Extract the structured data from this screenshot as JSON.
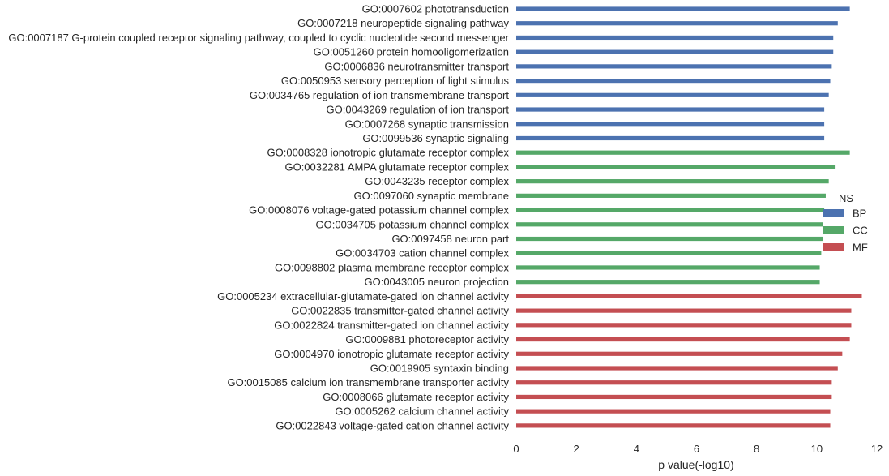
{
  "chart_data": {
    "type": "bar",
    "orientation": "horizontal",
    "xlabel": "p value(-log10)",
    "ylabel": "",
    "xlim": [
      0,
      12
    ],
    "xticks": [
      "0",
      "2",
      "4",
      "6",
      "8",
      "10",
      "12"
    ],
    "grid": false,
    "legend": {
      "title": "NS",
      "placement": "right",
      "entries": [
        {
          "name": "BP",
          "color": "#4c72b0"
        },
        {
          "name": "CC",
          "color": "#55a868"
        },
        {
          "name": "MF",
          "color": "#c44e52"
        }
      ]
    },
    "bars": [
      {
        "label": "GO:0007602 phototransduction",
        "value": 11.1,
        "group": "BP"
      },
      {
        "label": "GO:0007218 neuropeptide signaling pathway",
        "value": 10.7,
        "group": "BP"
      },
      {
        "label": "GO:0007187 G-protein coupled receptor signaling pathway, coupled to cyclic nucleotide second messenger",
        "value": 10.55,
        "group": "BP"
      },
      {
        "label": "GO:0051260 protein homooligomerization",
        "value": 10.55,
        "group": "BP"
      },
      {
        "label": "GO:0006836 neurotransmitter transport",
        "value": 10.5,
        "group": "BP"
      },
      {
        "label": "GO:0050953 sensory perception of light stimulus",
        "value": 10.45,
        "group": "BP"
      },
      {
        "label": "GO:0034765 regulation of ion transmembrane transport",
        "value": 10.4,
        "group": "BP"
      },
      {
        "label": "GO:0043269 regulation of ion transport",
        "value": 10.25,
        "group": "BP"
      },
      {
        "label": "GO:0007268 synaptic transmission",
        "value": 10.25,
        "group": "BP"
      },
      {
        "label": "GO:0099536 synaptic signaling",
        "value": 10.25,
        "group": "BP"
      },
      {
        "label": "GO:0008328 ionotropic glutamate receptor complex",
        "value": 11.1,
        "group": "CC"
      },
      {
        "label": "GO:0032281 AMPA glutamate receptor complex",
        "value": 10.6,
        "group": "CC"
      },
      {
        "label": "GO:0043235 receptor complex",
        "value": 10.4,
        "group": "CC"
      },
      {
        "label": "GO:0097060 synaptic membrane",
        "value": 10.3,
        "group": "CC"
      },
      {
        "label": "GO:0008076 voltage-gated potassium channel complex",
        "value": 10.25,
        "group": "CC"
      },
      {
        "label": "GO:0034705 potassium channel complex",
        "value": 10.2,
        "group": "CC"
      },
      {
        "label": "GO:0097458 neuron part",
        "value": 10.2,
        "group": "CC"
      },
      {
        "label": "GO:0034703 cation channel complex",
        "value": 10.15,
        "group": "CC"
      },
      {
        "label": "GO:0098802 plasma membrane receptor complex",
        "value": 10.1,
        "group": "CC"
      },
      {
        "label": "GO:0043005 neuron projection",
        "value": 10.1,
        "group": "CC"
      },
      {
        "label": "GO:0005234 extracellular-glutamate-gated ion channel activity",
        "value": 11.5,
        "group": "MF"
      },
      {
        "label": "GO:0022835 transmitter-gated channel activity",
        "value": 11.15,
        "group": "MF"
      },
      {
        "label": "GO:0022824 transmitter-gated ion channel activity",
        "value": 11.15,
        "group": "MF"
      },
      {
        "label": "GO:0009881 photoreceptor activity",
        "value": 11.1,
        "group": "MF"
      },
      {
        "label": "GO:0004970 ionotropic glutamate receptor activity",
        "value": 10.85,
        "group": "MF"
      },
      {
        "label": "GO:0019905 syntaxin binding",
        "value": 10.7,
        "group": "MF"
      },
      {
        "label": "GO:0015085 calcium ion transmembrane transporter activity",
        "value": 10.5,
        "group": "MF"
      },
      {
        "label": "GO:0008066 glutamate receptor activity",
        "value": 10.5,
        "group": "MF"
      },
      {
        "label": "GO:0005262 calcium channel activity",
        "value": 10.45,
        "group": "MF"
      },
      {
        "label": "GO:0022843 voltage-gated cation channel activity",
        "value": 10.45,
        "group": "MF"
      }
    ]
  }
}
